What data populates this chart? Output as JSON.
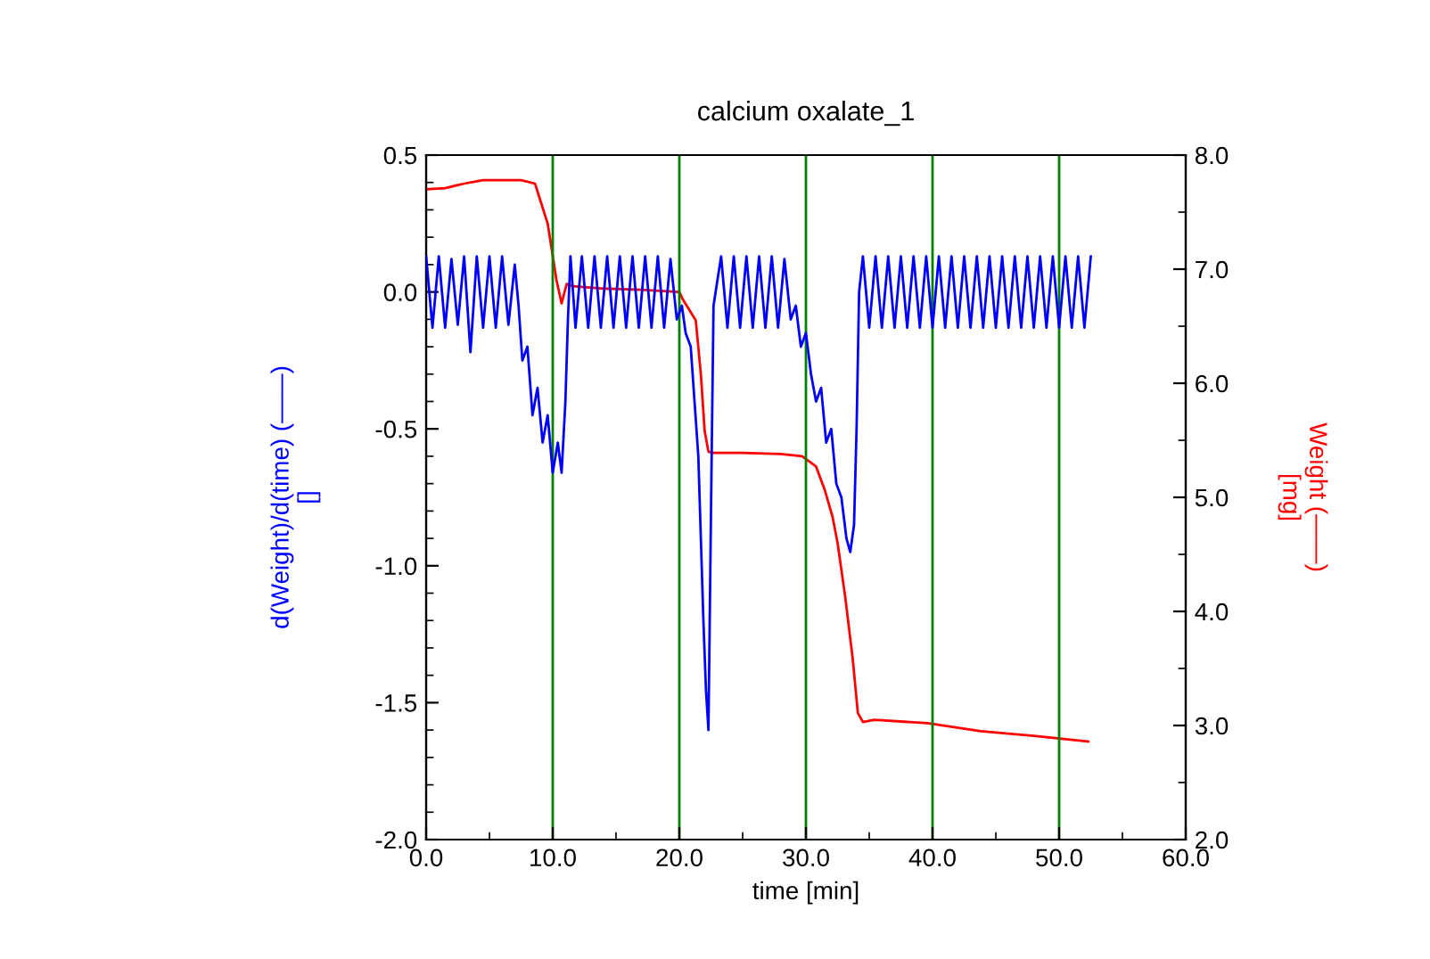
{
  "chart_data": {
    "type": "line",
    "title": "calcium oxalate_1",
    "xlabel": "time [min]",
    "ylabel": "d(Weight)/d(time) (——)\n[]",
    "y2label": "Weight (——)\n[mg]",
    "xlim": [
      0,
      60
    ],
    "xticks": [
      {
        "value": 0,
        "label": "0.0"
      },
      {
        "value": 10,
        "label": "10.0"
      },
      {
        "value": 20,
        "label": "20.0"
      },
      {
        "value": 30,
        "label": "30.0"
      },
      {
        "value": 40,
        "label": "40.0"
      },
      {
        "value": 50,
        "label": "50.0"
      },
      {
        "value": 60,
        "label": "60.0"
      }
    ],
    "ylim": [
      -2.0,
      0.5
    ],
    "yticks": [
      {
        "value": -2.0,
        "label": "-2.0"
      },
      {
        "value": -1.5,
        "label": "-1.5"
      },
      {
        "value": -1.0,
        "label": "-1.0"
      },
      {
        "value": -0.5,
        "label": "-0.5"
      },
      {
        "value": 0.0,
        "label": "0.0"
      },
      {
        "value": 0.5,
        "label": "0.5"
      }
    ],
    "y2lim": [
      2.0,
      8.0
    ],
    "y2ticks": [
      {
        "value": 2,
        "label": "2.0"
      },
      {
        "value": 3,
        "label": "3.0"
      },
      {
        "value": 4,
        "label": "4.0"
      },
      {
        "value": 5,
        "label": "5.0"
      },
      {
        "value": 6,
        "label": "6.0"
      },
      {
        "value": 7,
        "label": "7.0"
      },
      {
        "value": 8,
        "label": "8.0"
      }
    ],
    "grid": false,
    "legend": false,
    "marker": "none",
    "line_style": "solid",
    "ref_lines": [
      {
        "axis": "x",
        "value": 10,
        "color": "#008000"
      },
      {
        "axis": "x",
        "value": 20,
        "color": "#008000"
      },
      {
        "axis": "x",
        "value": 30,
        "color": "#008000"
      },
      {
        "axis": "x",
        "value": 40,
        "color": "#008000"
      },
      {
        "axis": "x",
        "value": 50,
        "color": "#008000"
      }
    ],
    "series": [
      {
        "color": "#0000ff",
        "x": [
          0,
          0.5,
          1,
          1.5,
          2,
          2.5,
          3,
          3.5,
          4,
          4.5,
          5,
          5.5,
          6,
          6.5,
          7,
          7.3,
          7.6,
          8,
          8.4,
          8.8,
          9.2,
          9.6,
          10,
          10.4,
          10.7,
          11,
          11.2,
          11.4,
          11.8,
          12.3,
          12.8,
          13.3,
          13.8,
          14.3,
          14.8,
          15.3,
          15.8,
          16.3,
          16.8,
          17.3,
          17.8,
          18.3,
          18.8,
          19.3,
          19.8,
          20.2,
          20.5,
          20.9,
          21.2,
          21.5,
          21.7,
          21.9,
          22.1,
          22.3,
          22.5,
          22.7,
          23.3,
          23.8,
          24.3,
          24.8,
          25.3,
          25.8,
          26.3,
          26.8,
          27.3,
          27.8,
          28.3,
          28.8,
          29.2,
          29.6,
          30,
          30.4,
          30.8,
          31.2,
          31.6,
          32,
          32.4,
          32.8,
          33.2,
          33.5,
          33.8,
          34,
          34.2,
          34.5,
          35,
          35.5,
          36,
          36.5,
          37,
          37.5,
          38,
          38.5,
          39,
          39.5,
          40,
          40.5,
          41,
          41.5,
          42,
          42.5,
          43,
          43.5,
          44,
          44.5,
          45,
          45.5,
          46,
          46.5,
          47,
          47.5,
          48,
          48.5,
          49,
          49.5,
          50,
          50.5,
          51,
          51.5,
          52,
          52.5
        ],
        "values": [
          0.13,
          -0.13,
          0.13,
          -0.13,
          0.12,
          -0.12,
          0.13,
          -0.22,
          0.13,
          -0.13,
          0.13,
          -0.13,
          0.13,
          -0.12,
          0.1,
          -0.05,
          -0.25,
          -0.2,
          -0.45,
          -0.35,
          -0.55,
          -0.45,
          -0.66,
          -0.55,
          -0.66,
          -0.4,
          -0.1,
          0.13,
          -0.13,
          0.13,
          -0.13,
          0.13,
          -0.13,
          0.13,
          -0.13,
          0.13,
          -0.13,
          0.13,
          -0.13,
          0.13,
          -0.13,
          0.13,
          -0.13,
          0.12,
          -0.1,
          -0.05,
          -0.15,
          -0.2,
          -0.4,
          -0.6,
          -0.9,
          -1.2,
          -1.45,
          -1.6,
          -0.8,
          -0.05,
          0.13,
          -0.13,
          0.13,
          -0.13,
          0.13,
          -0.13,
          0.13,
          -0.13,
          0.13,
          -0.13,
          0.12,
          -0.1,
          -0.05,
          -0.2,
          -0.15,
          -0.3,
          -0.4,
          -0.35,
          -0.55,
          -0.5,
          -0.7,
          -0.75,
          -0.9,
          -0.95,
          -0.85,
          -0.5,
          0.0,
          0.13,
          -0.13,
          0.13,
          -0.13,
          0.13,
          -0.13,
          0.13,
          -0.13,
          0.13,
          -0.13,
          0.13,
          -0.13,
          0.13,
          -0.13,
          0.13,
          -0.13,
          0.13,
          -0.13,
          0.13,
          -0.13,
          0.13,
          -0.13,
          0.13,
          -0.13,
          0.13,
          -0.13,
          0.13,
          -0.13,
          0.13,
          -0.13,
          0.13,
          -0.13,
          0.13,
          -0.13,
          0.13,
          -0.13,
          0.13
        ]
      },
      {
        "color": "#ff0000",
        "axis": "y2",
        "x": [
          0,
          1.5,
          3,
          4.5,
          6,
          7.5,
          8.6,
          9.6,
          10.3,
          10.7,
          11.1,
          11.6,
          14,
          17,
          20,
          20.3,
          21.3,
          21.7,
          22,
          22.3,
          22.7,
          25,
          28,
          29.7,
          30.8,
          31.5,
          32.1,
          32.5,
          33.1,
          33.7,
          34.1,
          34.5,
          35.4,
          39.6,
          43.8,
          48,
          52.3
        ],
        "values": [
          7.7,
          7.71,
          7.75,
          7.78,
          7.78,
          7.78,
          7.75,
          7.4,
          6.9,
          6.7,
          6.87,
          6.85,
          6.83,
          6.82,
          6.8,
          6.73,
          6.55,
          6.08,
          5.58,
          5.4,
          5.39,
          5.39,
          5.38,
          5.36,
          5.27,
          5.06,
          4.83,
          4.6,
          4.13,
          3.58,
          3.11,
          3.03,
          3.05,
          3.02,
          2.95,
          2.91,
          2.86
        ]
      }
    ]
  }
}
